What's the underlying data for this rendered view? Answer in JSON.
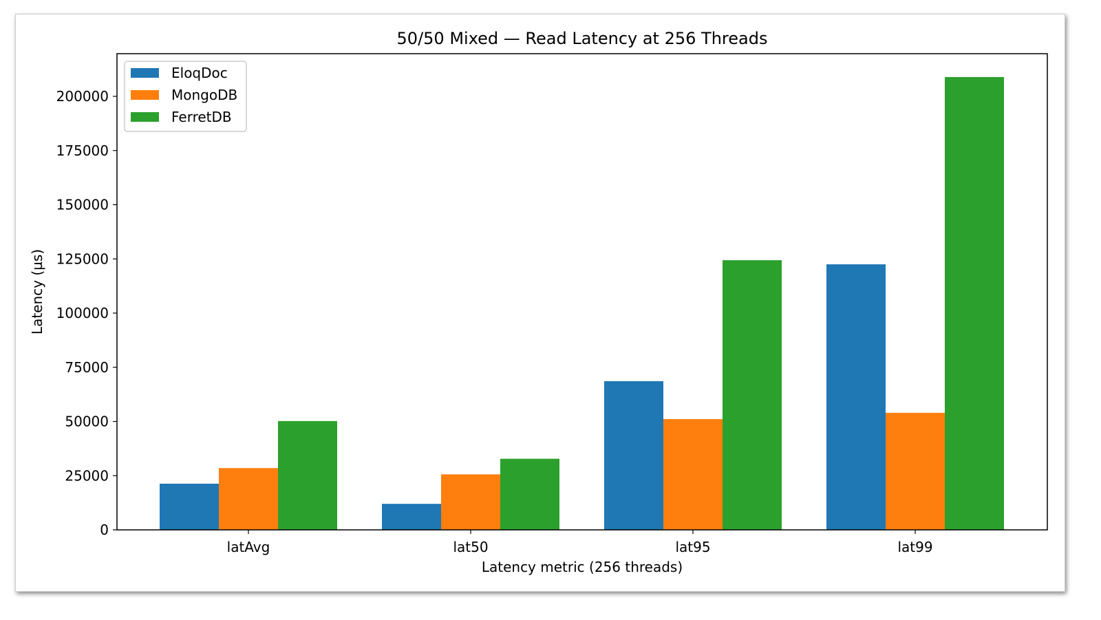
{
  "chart_data": {
    "type": "bar",
    "title": "50/50 Mixed — Read Latency at 256 Threads",
    "xlabel": "Latency metric (256 threads)",
    "ylabel": "Latency (µs)",
    "categories": [
      "latAvg",
      "lat50",
      "lat95",
      "lat99"
    ],
    "ylim": [
      0,
      220000
    ],
    "yticks": [
      0,
      25000,
      50000,
      75000,
      100000,
      125000,
      150000,
      175000,
      200000
    ],
    "ytick_labels": [
      "0",
      "25000",
      "50000",
      "75000",
      "100000",
      "125000",
      "150000",
      "175000",
      "200000"
    ],
    "grid": false,
    "legend": "top-left",
    "series": [
      {
        "name": "EloqDoc",
        "color": "#1f77b4",
        "values": [
          21300,
          12000,
          68600,
          122500
        ]
      },
      {
        "name": "MongoDB",
        "color": "#ff7f0e",
        "values": [
          28500,
          25600,
          51100,
          54000
        ]
      },
      {
        "name": "FerretDB",
        "color": "#2ca02c",
        "values": [
          50200,
          32800,
          124400,
          208900
        ]
      }
    ]
  }
}
